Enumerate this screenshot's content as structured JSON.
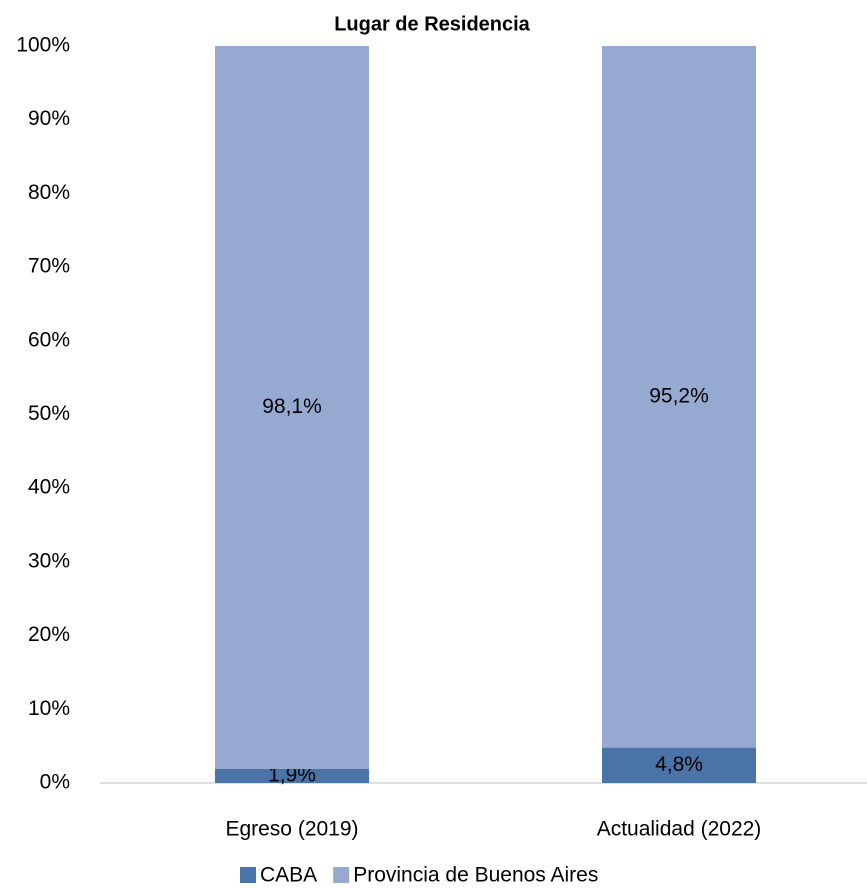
{
  "chart_data": {
    "type": "stacked_bar",
    "title": "Lugar de Residencia",
    "categories": [
      "Egreso (2019)",
      "Actualidad (2022)"
    ],
    "series": [
      {
        "name": "CABA",
        "color": "#4a74a8",
        "values": [
          1.9,
          4.8
        ],
        "value_labels": [
          "1,9%",
          "4,8%"
        ]
      },
      {
        "name": "Provincia de Buenos Aires",
        "color": "#95a9d1",
        "values": [
          98.1,
          95.2
        ],
        "value_labels": [
          "98,1%",
          "95,2%"
        ]
      }
    ],
    "ylim": [
      0,
      100
    ],
    "yticks": [
      {
        "value": 0,
        "label": "0%"
      },
      {
        "value": 10,
        "label": "10%"
      },
      {
        "value": 20,
        "label": "20%"
      },
      {
        "value": 30,
        "label": "30%"
      },
      {
        "value": 40,
        "label": "40%"
      },
      {
        "value": 50,
        "label": "50%"
      },
      {
        "value": 60,
        "label": "60%"
      },
      {
        "value": 70,
        "label": "70%"
      },
      {
        "value": 80,
        "label": "80%"
      },
      {
        "value": 90,
        "label": "90%"
      },
      {
        "value": 100,
        "label": "100%"
      }
    ],
    "legend": "bottom"
  }
}
